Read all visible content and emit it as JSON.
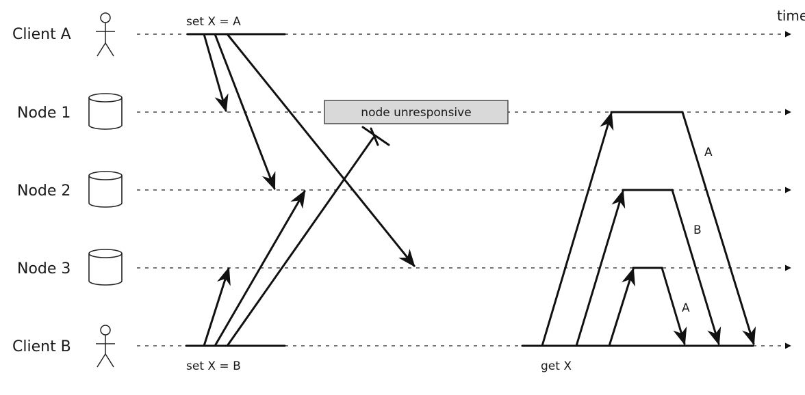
{
  "lanes": {
    "client_a": "Client A",
    "node1": "Node 1",
    "node2": "Node 2",
    "node3": "Node 3",
    "client_b": "Client B"
  },
  "time_label": "time",
  "client_a_op": "set X = A",
  "client_b_op": "set X = B",
  "read_op": "get X",
  "unresponsive_label": "node unresponsive",
  "responses": {
    "node1": "A",
    "node2": "B",
    "node3": "A"
  },
  "colors": {
    "ink": "#111111",
    "unresponsive_box": "#d9d9d9"
  }
}
